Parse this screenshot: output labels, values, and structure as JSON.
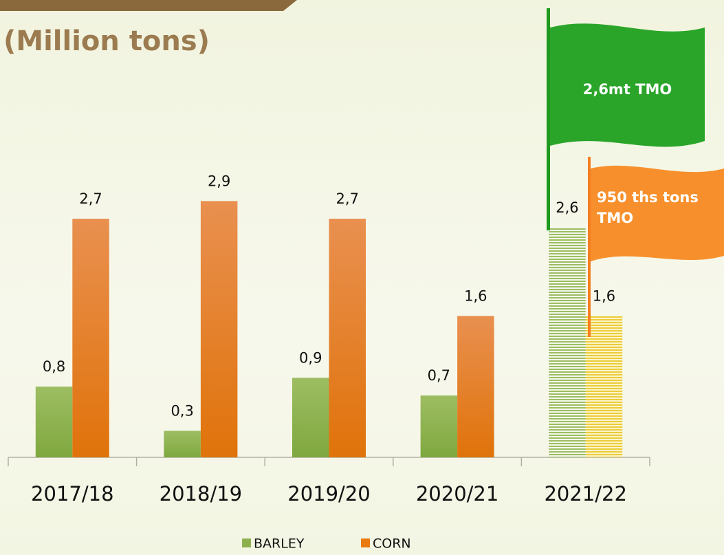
{
  "chart_data": {
    "type": "bar",
    "title": "(Million tons)",
    "categories": [
      "2017/18",
      "2018/19",
      "2019/20",
      "2020/21",
      "2021/22"
    ],
    "series": [
      {
        "name": "BARLEY",
        "color": "#8db04f",
        "values": [
          0.8,
          0.3,
          0.9,
          0.7,
          2.6
        ],
        "value_labels": [
          "0,8",
          "0,3",
          "0,9",
          "0,7",
          "2,6"
        ]
      },
      {
        "name": "CORN",
        "color": "#e87a10",
        "values": [
          2.7,
          2.9,
          2.7,
          1.6,
          1.6
        ],
        "value_labels": [
          "2,7",
          "2,9",
          "2,7",
          "1,6",
          "1,6"
        ]
      }
    ],
    "hatched": [
      false,
      false,
      false,
      false,
      true
    ],
    "annotations": [
      "2,6mt TMO",
      "950 ths tons TMO"
    ]
  }
}
